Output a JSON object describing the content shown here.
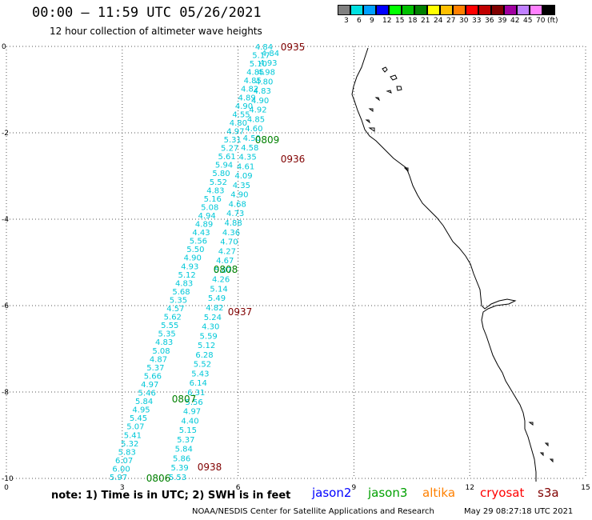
{
  "header": {
    "title": "00:00 — 11:59 UTC 05/26/2021",
    "subtitle": "12 hour collection of altimeter wave heights"
  },
  "legend": {
    "unit": "(ft)",
    "swatches": [
      {
        "label": "3",
        "color": "#808080"
      },
      {
        "label": "6",
        "color": "#00e0e0"
      },
      {
        "label": "9",
        "color": "#00a0ff"
      },
      {
        "label": "12",
        "color": "#0000ff"
      },
      {
        "label": "15",
        "color": "#00ff00"
      },
      {
        "label": "18",
        "color": "#00c000"
      },
      {
        "label": "21",
        "color": "#008000"
      },
      {
        "label": "24",
        "color": "#ffff00"
      },
      {
        "label": "27",
        "color": "#ffc000"
      },
      {
        "label": "30",
        "color": "#ff8000"
      },
      {
        "label": "33",
        "color": "#ff0000"
      },
      {
        "label": "36",
        "color": "#c00000"
      },
      {
        "label": "39",
        "color": "#800000"
      },
      {
        "label": "42",
        "color": "#a000a0"
      },
      {
        "label": "45",
        "color": "#c080ff"
      },
      {
        "label": "70",
        "color": "#ff80ff"
      },
      {
        "label": "",
        "color": "#000000"
      }
    ]
  },
  "axes": {
    "x_ticks": [
      "0",
      "3",
      "6",
      "9",
      "12",
      "15"
    ],
    "y_ticks": [
      "0",
      "-2",
      "-4",
      "-6",
      "-8",
      "-10"
    ]
  },
  "time_labels": [
    {
      "text": "0935",
      "color": "#800000"
    },
    {
      "text": "0809",
      "color": "#008000"
    },
    {
      "text": "0936",
      "color": "#800000"
    },
    {
      "text": "0808",
      "color": "#008000"
    },
    {
      "text": "0937",
      "color": "#800000"
    },
    {
      "text": "0807",
      "color": "#008000"
    },
    {
      "text": "0938",
      "color": "#800000"
    },
    {
      "text": "0806",
      "color": "#008000"
    }
  ],
  "track_a_values": [
    "4.84",
    "5.17",
    "5.10",
    "4.85",
    "4.85",
    "4.82",
    "4.89",
    "4.90",
    "4.55",
    "4.80",
    "4.97",
    "5.31",
    "5.27",
    "5.61",
    "5.94",
    "5.80",
    "5.52",
    "4.83",
    "5.16",
    "5.08",
    "4.94",
    "4.89",
    "4.43",
    "5.56",
    "5.50",
    "4.90",
    "4.93",
    "5.12",
    "4.83",
    "5.68",
    "5.35",
    "4.57",
    "5.62",
    "5.55",
    "5.35",
    "4.83",
    "5.08",
    "4.87",
    "5.37",
    "5.66",
    "4.97",
    "5.46",
    "5.84",
    "4.95",
    "5.45",
    "5.07",
    "5.41",
    "5.32",
    "5.83",
    "6.07",
    "6.00",
    "5.97"
  ],
  "track_b_values": [
    "4.84",
    "4.93",
    "4.98",
    "4.80",
    "4.83",
    "4.90",
    "4.92",
    "4.85",
    "4.60",
    "4.50",
    "4.58",
    "4.35",
    "4.61",
    "4.09",
    "4.35",
    "4.90",
    "4.68",
    "4.73",
    "4.88",
    "4.36",
    "4.70",
    "4.27",
    "4.67",
    "5.07",
    "4.26",
    "5.14",
    "5.49",
    "4.82",
    "5.24",
    "4.30",
    "5.59",
    "5.12",
    "6.28",
    "5.52",
    "5.43",
    "6.14",
    "6.31",
    "5.56",
    "4.97",
    "4.40",
    "5.15",
    "5.37",
    "5.84",
    "5.86",
    "5.39",
    "5.53"
  ],
  "footer": {
    "note": "note: 1) Time is in UTC; 2) SWH is in feet",
    "satellites": [
      {
        "name": "jason2",
        "color": "#0000ff"
      },
      {
        "name": "jason3",
        "color": "#00a000"
      },
      {
        "name": "altika",
        "color": "#ff8000"
      },
      {
        "name": "cryosat",
        "color": "#ff0000"
      },
      {
        "name": "s3a",
        "color": "#800000"
      }
    ],
    "credit": "NOAA/NESDIS Center for Satellite Applications and Research",
    "timestamp": "May 29 08:27:18 UTC 2021"
  }
}
